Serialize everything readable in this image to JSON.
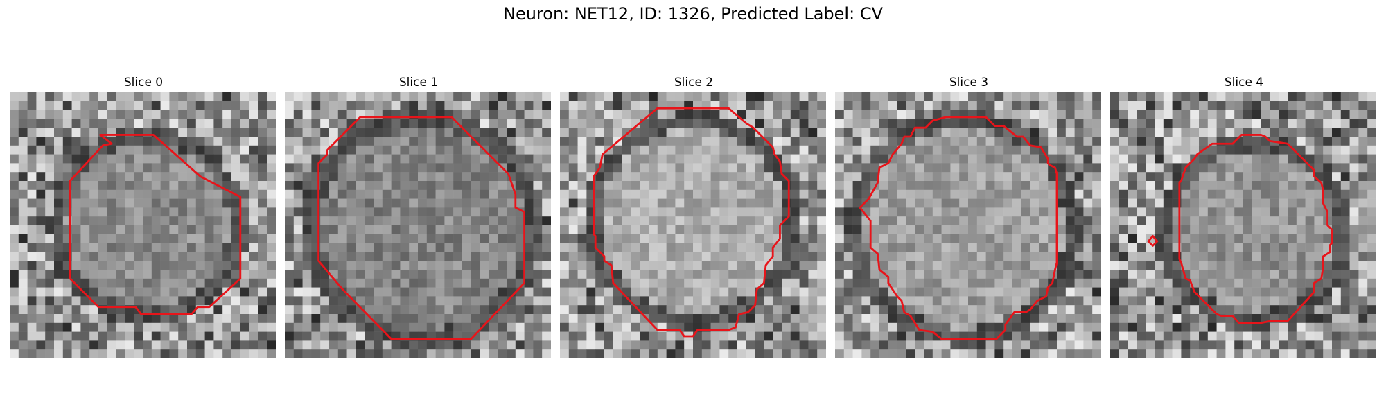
{
  "figure": {
    "title": "Neuron: NET12, ID: 1326, Predicted Label: CV"
  },
  "contour_color": "#e8141a",
  "colormap": "grayscale",
  "slices": [
    {
      "title": "Slice 0"
    },
    {
      "title": "Slice 1"
    },
    {
      "title": "Slice 2"
    },
    {
      "title": "Slice 3"
    },
    {
      "title": "Slice 4"
    }
  ]
}
